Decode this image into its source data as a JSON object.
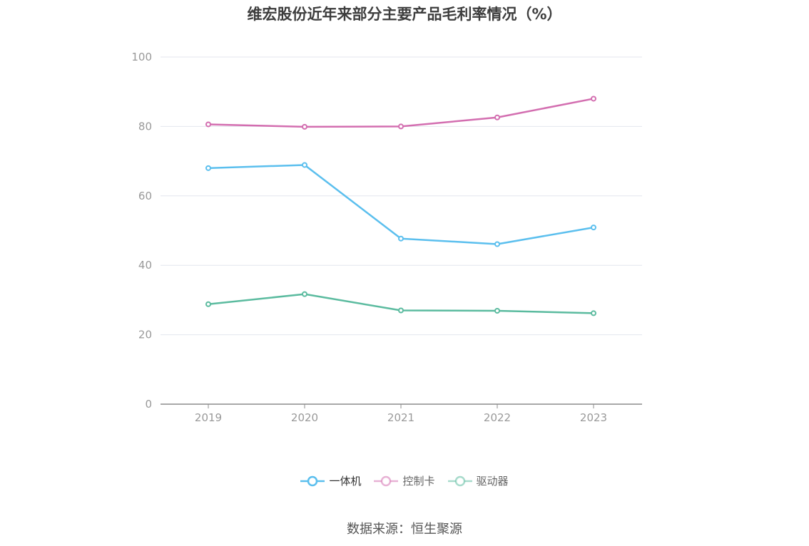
{
  "title": "维宏股份近年来部分主要产品毛利率情况（%）",
  "source": "数据来源：恒生聚源",
  "chart_data": {
    "type": "line",
    "title": "维宏股份近年来部分主要产品毛利率情况（%）",
    "categories": [
      "2019",
      "2020",
      "2021",
      "2022",
      "2023"
    ],
    "ylim": [
      0,
      100
    ],
    "yticks": [
      0,
      20,
      40,
      60,
      80,
      100
    ],
    "grid": true,
    "legend_position": "bottom",
    "series": [
      {
        "name": "一体机",
        "color": "#5bbfee",
        "values": [
          68.0,
          68.9,
          47.7,
          46.1,
          50.9
        ]
      },
      {
        "name": "控制卡",
        "color": "#d36eb0",
        "values": [
          80.6,
          79.9,
          80.0,
          82.6,
          88.0
        ]
      },
      {
        "name": "驱动器",
        "color": "#5bbb9f",
        "values": [
          28.8,
          31.7,
          27.0,
          26.9,
          26.2
        ]
      }
    ]
  }
}
